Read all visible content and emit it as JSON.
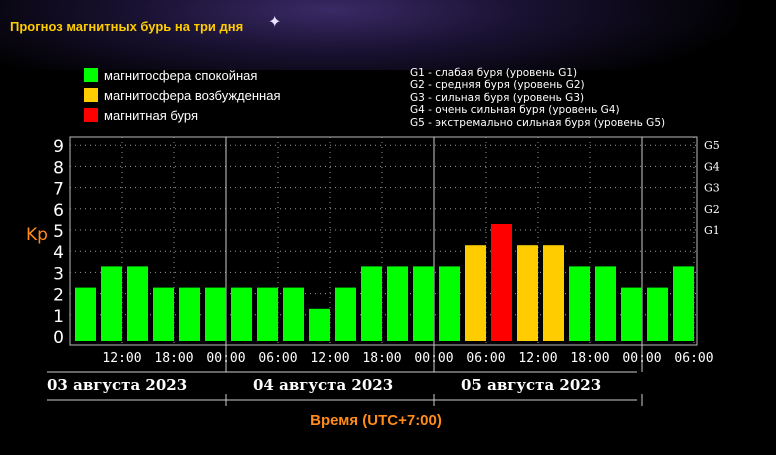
{
  "title": "Прогноз магнитных бурь на три дня",
  "legend": [
    {
      "label": "магнитосфера спокойная",
      "color": "#00ff00"
    },
    {
      "label": "магнитосфера возбужденная",
      "color": "#ffcc00"
    },
    {
      "label": "магнитная буря",
      "color": "#ff0000"
    }
  ],
  "g_legend": [
    "G1 - слабая буря (уровень G1)",
    "G2 - средняя буря (уровень G2)",
    "G3 - сильная буря (уровень G3)",
    "G4 - очень сильная буря (уровень G4)",
    "G5 - экстремально сильная буря (уровень G5)"
  ],
  "dates": [
    "03 августа 2023",
    "04 августа 2023",
    "05 августа 2023"
  ],
  "time_label": "Время (UTC+7:00)",
  "chart_data": {
    "type": "bar",
    "ylabel": "Kp",
    "ylim": [
      0,
      9
    ],
    "yticks": [
      "0",
      "1",
      "2",
      "3",
      "4",
      "5",
      "6",
      "7",
      "8",
      "9"
    ],
    "right_ticks": [
      {
        "value": 5,
        "label": "G1"
      },
      {
        "value": 6,
        "label": "G2"
      },
      {
        "value": 7,
        "label": "G3"
      },
      {
        "value": 8,
        "label": "G4"
      },
      {
        "value": 9,
        "label": "G5"
      }
    ],
    "xticks": [
      "12:00",
      "18:00",
      "00:00",
      "06:00",
      "12:00",
      "18:00",
      "00:00",
      "06:00",
      "12:00",
      "18:00",
      "00:00",
      "06:00"
    ],
    "values": [
      2,
      3,
      3,
      2,
      2,
      2,
      2,
      2,
      2,
      1,
      2,
      3,
      3,
      3,
      3,
      4,
      5,
      4,
      4,
      3,
      3,
      2,
      2,
      3
    ],
    "colors": {
      "quiet": "#00ff00",
      "active": "#ffcc00",
      "storm": "#ff0000"
    },
    "grid": true
  }
}
